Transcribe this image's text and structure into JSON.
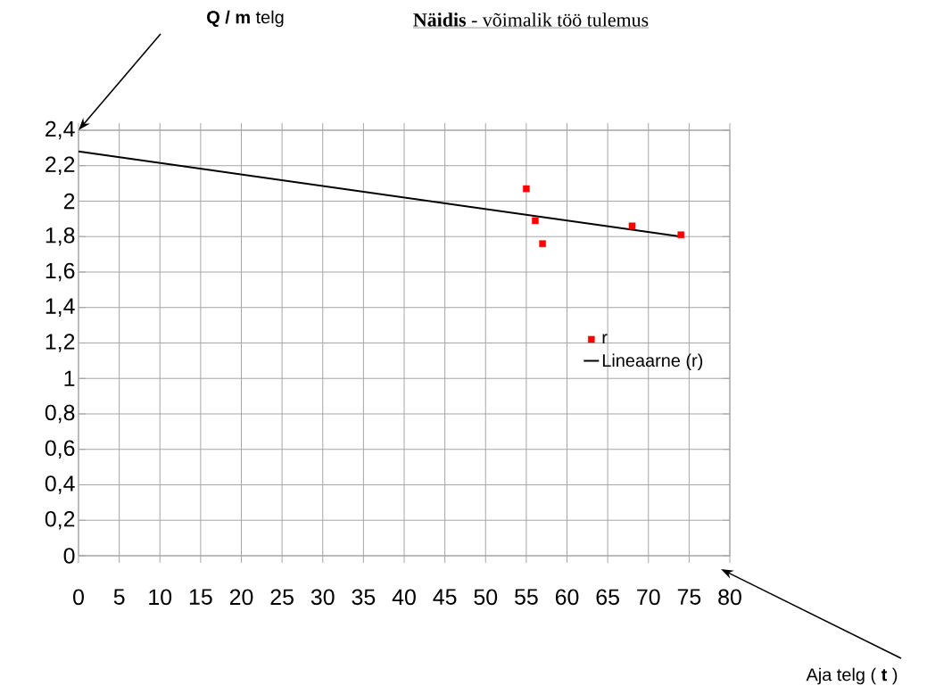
{
  "chart_data": {
    "type": "scatter",
    "title": "**Näidis** -  võimalik töö tulemus",
    "annotations": [
      "**Q / m**  telg",
      "Aja telg ( **t** )"
    ],
    "xlim": [
      0,
      80
    ],
    "ylim": [
      0,
      2.4
    ],
    "xticks": [
      0,
      5,
      10,
      15,
      20,
      25,
      30,
      35,
      40,
      45,
      50,
      55,
      60,
      65,
      70,
      75,
      80
    ],
    "yticks": [
      {
        "value": 0,
        "label": "0"
      },
      {
        "value": 0.2,
        "label": "0,2"
      },
      {
        "value": 0.4,
        "label": "0,4"
      },
      {
        "value": 0.6,
        "label": "0,6"
      },
      {
        "value": 0.8,
        "label": "0,8"
      },
      {
        "value": 1,
        "label": "1"
      },
      {
        "value": 1.2,
        "label": "1,2"
      },
      {
        "value": 1.4,
        "label": "1,4"
      },
      {
        "value": 1.6,
        "label": "1,6"
      },
      {
        "value": 1.8,
        "label": "1,8"
      },
      {
        "value": 2,
        "label": "2"
      },
      {
        "value": 2.2,
        "label": "2,2"
      },
      {
        "value": 2.4,
        "label": "2,4"
      }
    ],
    "grid": true,
    "legend": "right",
    "series": [
      {
        "name": "r",
        "marker": "square",
        "color": "#ff0000",
        "x": [
          55,
          56.1,
          57,
          68,
          74
        ],
        "values": [
          2.07,
          1.89,
          1.76,
          1.86,
          1.81
        ]
      },
      {
        "name": "Lineaarne (r)",
        "type": "line",
        "color": "#000000",
        "x": [
          0,
          74
        ],
        "values": [
          2.28,
          1.8
        ]
      }
    ]
  }
}
